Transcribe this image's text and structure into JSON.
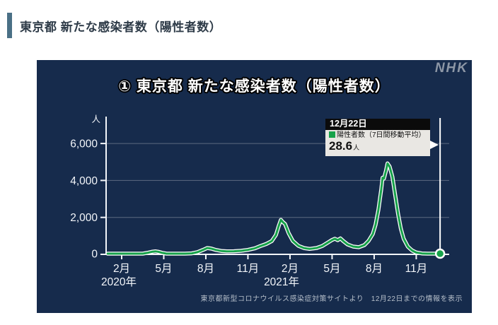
{
  "page": {
    "header": {
      "title": "東京都 新たな感染者数（陽性者数）"
    },
    "accent_color": "#4a7086"
  },
  "panel": {
    "bg_color": "#162b4c",
    "logo": "NHK",
    "title": "① 東京都 新たな感染者数（陽性者数）",
    "source_note": "東京都新型コロナウイルス感染症対策サイトより　12月22日までの情報を表示"
  },
  "tooltip": {
    "date": "12月22日",
    "legend_marker_color": "#17a24a",
    "legend_label": "陽性者数（7日間移動平均）",
    "value": "28.6",
    "unit": "人"
  },
  "chart_data": {
    "type": "line",
    "title": "① 東京都 新たな感染者数（陽性者数）",
    "ylabel": "人",
    "ylim": [
      0,
      6400
    ],
    "yticks": [
      0,
      2000,
      4000,
      6000
    ],
    "ytick_labels": [
      "0",
      "2,000",
      "4,000",
      "6,000"
    ],
    "grid": true,
    "grid_color": "#6e7a8e",
    "axis_color": "#f2f5f9",
    "xtick_labels": [
      "2月",
      "5月",
      "8月",
      "11月",
      "2月",
      "5月",
      "8月",
      "11月"
    ],
    "xtick_months": [
      0,
      3,
      6,
      9,
      12,
      15,
      18,
      21
    ],
    "year_labels": [
      {
        "text": "2020年",
        "month": -0.2
      },
      {
        "text": "2021年",
        "month": 11.4
      }
    ],
    "series": [
      {
        "name": "陽性者数（7日間移動平均）",
        "color": "#17a24a",
        "casing_color": "#ffffff",
        "points": [
          [
            -1.0,
            2
          ],
          [
            0,
            3
          ],
          [
            0.5,
            6
          ],
          [
            1.0,
            15
          ],
          [
            1.5,
            40
          ],
          [
            1.9,
            90
          ],
          [
            2.2,
            145
          ],
          [
            2.4,
            165
          ],
          [
            2.6,
            140
          ],
          [
            2.9,
            80
          ],
          [
            3.2,
            40
          ],
          [
            3.5,
            22
          ],
          [
            4.0,
            20
          ],
          [
            4.5,
            30
          ],
          [
            5.0,
            55
          ],
          [
            5.4,
            120
          ],
          [
            5.8,
            240
          ],
          [
            6.1,
            345
          ],
          [
            6.4,
            310
          ],
          [
            6.7,
            240
          ],
          [
            7.1,
            185
          ],
          [
            7.5,
            165
          ],
          [
            8.0,
            170
          ],
          [
            8.5,
            190
          ],
          [
            9.0,
            240
          ],
          [
            9.5,
            330
          ],
          [
            9.9,
            450
          ],
          [
            10.3,
            560
          ],
          [
            10.7,
            720
          ],
          [
            11.0,
            1050
          ],
          [
            11.2,
            1550
          ],
          [
            11.35,
            1870
          ],
          [
            11.5,
            1740
          ],
          [
            11.65,
            1640
          ],
          [
            11.9,
            1150
          ],
          [
            12.2,
            730
          ],
          [
            12.6,
            460
          ],
          [
            13.0,
            340
          ],
          [
            13.4,
            295
          ],
          [
            13.9,
            345
          ],
          [
            14.3,
            450
          ],
          [
            14.7,
            640
          ],
          [
            15.0,
            780
          ],
          [
            15.2,
            845
          ],
          [
            15.4,
            770
          ],
          [
            15.6,
            860
          ],
          [
            15.8,
            720
          ],
          [
            16.1,
            540
          ],
          [
            16.5,
            420
          ],
          [
            16.9,
            385
          ],
          [
            17.3,
            500
          ],
          [
            17.6,
            730
          ],
          [
            17.9,
            1100
          ],
          [
            18.1,
            1600
          ],
          [
            18.3,
            2400
          ],
          [
            18.5,
            3500
          ],
          [
            18.6,
            4150
          ],
          [
            18.7,
            4100
          ],
          [
            18.85,
            4550
          ],
          [
            18.95,
            4920
          ],
          [
            19.1,
            4750
          ],
          [
            19.3,
            4200
          ],
          [
            19.5,
            3200
          ],
          [
            19.7,
            2200
          ],
          [
            19.9,
            1400
          ],
          [
            20.1,
            850
          ],
          [
            20.4,
            420
          ],
          [
            20.7,
            210
          ],
          [
            21.0,
            100
          ],
          [
            21.4,
            48
          ],
          [
            21.8,
            28
          ],
          [
            22.2,
            21
          ],
          [
            22.5,
            22
          ],
          [
            22.7,
            28.6
          ]
        ]
      }
    ],
    "x_axis_note": "month index 0 = 2020年2月, 1 unit = 1 month",
    "end_marker": {
      "month": 22.7,
      "value": 28.6,
      "date": "12月22日"
    },
    "marker_line_color": "#ffffff",
    "legend_position": "tooltip"
  }
}
